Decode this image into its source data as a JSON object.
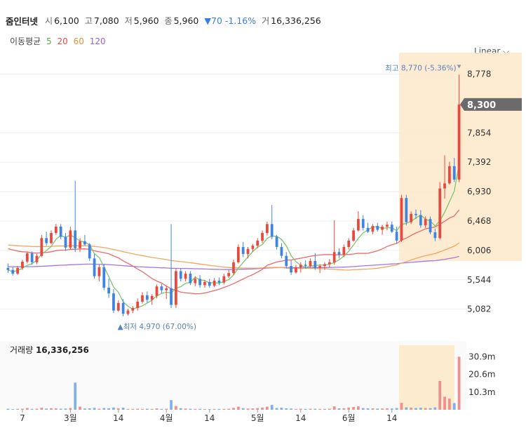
{
  "header": {
    "name": "줌인터넷",
    "open_label": "시",
    "open": "6,100",
    "high_label": "고",
    "high": "7,080",
    "low_label": "저",
    "low": "5,960",
    "close_label": "종",
    "close": "5,960",
    "change": "▼70 -1.16%",
    "volume_label": "거",
    "volume": "16,336,256"
  },
  "ma_legend": {
    "label": "이동평균",
    "p5": "5",
    "p20": "20",
    "p60": "60",
    "p120": "120"
  },
  "scale_button": "Linear ⌵",
  "volume_title": {
    "label": "거래량",
    "value": "16,336,256"
  },
  "colors": {
    "up": "#e8493f",
    "down": "#3e84e0",
    "ma5": "#7cc56b",
    "ma20": "#ec6a6a",
    "ma60": "#f3a55d",
    "ma120": "#a674e0",
    "highlight": "#fde9c9",
    "price_tag": "#6b6b6b"
  },
  "chart_data": {
    "type": "candlestick",
    "price_axis": {
      "ticks": [
        5082,
        5544,
        6006,
        6468,
        6930,
        7392,
        7854,
        8778
      ],
      "range": [
        4670,
        8950
      ]
    },
    "current_price_tag": "8,300",
    "max_annotation": "최고 8,770 (-5.36%)",
    "min_annotation": "▲최저 4,970 (67.00%)",
    "x_tick_labels": [
      "7",
      "3월",
      "14",
      "4월",
      "14",
      "5월",
      "14",
      "6월",
      "14"
    ],
    "x_tick_index": [
      3,
      13,
      23,
      33,
      42,
      52,
      61,
      71,
      80
    ],
    "volume_axis": {
      "ticks": [
        "30.9m",
        "20.6m",
        "10.3m"
      ],
      "tick_values": [
        30.9,
        20.6,
        10.3
      ],
      "max": 36
    },
    "highlight_from_index": 82,
    "candles": [
      [
        5730,
        5800,
        5650,
        5700
      ],
      [
        5700,
        5740,
        5610,
        5640
      ],
      [
        5640,
        5760,
        5620,
        5730
      ],
      [
        5730,
        5860,
        5700,
        5830
      ],
      [
        5830,
        5980,
        5800,
        5960
      ],
      [
        5960,
        5990,
        5780,
        5820
      ],
      [
        5820,
        5950,
        5790,
        5920
      ],
      [
        5920,
        6250,
        5900,
        6200
      ],
      [
        6200,
        6300,
        6080,
        6120
      ],
      [
        6120,
        6320,
        6100,
        6280
      ],
      [
        6280,
        6420,
        6250,
        6380
      ],
      [
        6380,
        6420,
        6180,
        6220
      ],
      [
        6220,
        6280,
        6000,
        6050
      ],
      [
        6050,
        6380,
        6020,
        6320
      ],
      [
        6320,
        7100,
        5980,
        6040
      ],
      [
        6040,
        6200,
        5980,
        6150
      ],
      [
        6150,
        6250,
        6080,
        6100
      ],
      [
        6100,
        6120,
        5840,
        5880
      ],
      [
        5880,
        5950,
        5560,
        5600
      ],
      [
        5600,
        5780,
        5520,
        5740
      ],
      [
        5740,
        5790,
        5380,
        5420
      ],
      [
        5420,
        5560,
        5260,
        5330
      ],
      [
        5330,
        5400,
        5020,
        5060
      ],
      [
        5060,
        5220,
        5040,
        5180
      ],
      [
        5180,
        5240,
        4970,
        5010
      ],
      [
        5010,
        5090,
        4980,
        5060
      ],
      [
        5060,
        5130,
        5020,
        5100
      ],
      [
        5100,
        5250,
        5060,
        5200
      ],
      [
        5200,
        5350,
        5170,
        5300
      ],
      [
        5300,
        5360,
        5180,
        5230
      ],
      [
        5230,
        5320,
        5150,
        5290
      ],
      [
        5290,
        5470,
        5250,
        5440
      ],
      [
        5440,
        5480,
        5330,
        5380
      ],
      [
        5380,
        5450,
        5240,
        5410
      ],
      [
        5410,
        6420,
        5100,
        5150
      ],
      [
        5150,
        5720,
        5100,
        5680
      ],
      [
        5680,
        5720,
        5520,
        5560
      ],
      [
        5560,
        5680,
        5520,
        5640
      ],
      [
        5640,
        5680,
        5460,
        5490
      ],
      [
        5490,
        5600,
        5440,
        5560
      ],
      [
        5560,
        5620,
        5420,
        5460
      ],
      [
        5460,
        5540,
        5420,
        5510
      ],
      [
        5510,
        5560,
        5420,
        5450
      ],
      [
        5450,
        5570,
        5430,
        5530
      ],
      [
        5530,
        5580,
        5460,
        5500
      ],
      [
        5500,
        5640,
        5470,
        5600
      ],
      [
        5600,
        5700,
        5570,
        5650
      ],
      [
        5650,
        5860,
        5620,
        5820
      ],
      [
        5820,
        6100,
        5800,
        6060
      ],
      [
        6060,
        6140,
        5900,
        5950
      ],
      [
        5950,
        6060,
        5880,
        6030
      ],
      [
        6030,
        6110,
        5980,
        6080
      ],
      [
        6080,
        6200,
        6040,
        6160
      ],
      [
        6160,
        6320,
        6120,
        6280
      ],
      [
        6280,
        6460,
        6240,
        6420
      ],
      [
        6420,
        6720,
        6180,
        6220
      ],
      [
        6220,
        6250,
        6020,
        6060
      ],
      [
        6060,
        6120,
        5880,
        5920
      ],
      [
        5920,
        5980,
        5720,
        5760
      ],
      [
        5760,
        5850,
        5620,
        5660
      ],
      [
        5660,
        5780,
        5640,
        5740
      ],
      [
        5740,
        5820,
        5660,
        5780
      ],
      [
        5780,
        5850,
        5720,
        5760
      ],
      [
        5760,
        5880,
        5740,
        5840
      ],
      [
        5840,
        5960,
        5700,
        5730
      ],
      [
        5730,
        5790,
        5650,
        5760
      ],
      [
        5760,
        5820,
        5700,
        5790
      ],
      [
        5790,
        5870,
        5740,
        5820
      ],
      [
        5820,
        6480,
        5780,
        5980
      ],
      [
        5980,
        6040,
        5880,
        5940
      ],
      [
        5940,
        6100,
        5900,
        6060
      ],
      [
        6060,
        6200,
        6020,
        6160
      ],
      [
        6160,
        6360,
        6140,
        6320
      ],
      [
        6320,
        6620,
        6300,
        6500
      ],
      [
        6500,
        6560,
        6320,
        6360
      ],
      [
        6360,
        6440,
        6280,
        6300
      ],
      [
        6300,
        6420,
        6260,
        6390
      ],
      [
        6390,
        6440,
        6300,
        6330
      ],
      [
        6330,
        6410,
        6250,
        6380
      ],
      [
        6380,
        6460,
        6320,
        6410
      ],
      [
        6410,
        6460,
        6280,
        6300
      ],
      [
        6300,
        6380,
        6120,
        6160
      ],
      [
        6160,
        6880,
        6140,
        6830
      ],
      [
        6830,
        6880,
        6400,
        6450
      ],
      [
        6450,
        6620,
        6420,
        6580
      ],
      [
        6580,
        6650,
        6500,
        6560
      ],
      [
        6560,
        6640,
        6360,
        6400
      ],
      [
        6400,
        6540,
        6360,
        6500
      ],
      [
        6500,
        6540,
        6260,
        6290
      ],
      [
        6290,
        6350,
        6150,
        6200
      ],
      [
        6200,
        7080,
        6180,
        6980
      ],
      [
        6980,
        7500,
        6820,
        7060
      ],
      [
        7060,
        7400,
        7040,
        7330
      ],
      [
        7330,
        7460,
        7080,
        7120
      ],
      [
        7120,
        8770,
        7080,
        8300
      ]
    ],
    "volume_m": [
      0.6,
      0.4,
      0.5,
      0.6,
      1.0,
      0.5,
      0.6,
      1.2,
      0.7,
      0.9,
      0.8,
      0.6,
      0.7,
      1.0,
      15.8,
      1.8,
      0.7,
      0.8,
      1.1,
      0.6,
      1.0,
      0.9,
      1.3,
      0.8,
      1.2,
      0.5,
      0.5,
      0.6,
      0.5,
      0.6,
      0.5,
      0.8,
      0.5,
      0.6,
      5.6,
      2.2,
      0.9,
      0.7,
      0.6,
      0.5,
      0.5,
      0.4,
      0.4,
      0.5,
      0.5,
      0.5,
      0.6,
      1.1,
      1.8,
      0.9,
      0.7,
      0.8,
      1.0,
      1.3,
      1.8,
      2.8,
      1.0,
      1.2,
      0.8,
      0.7,
      0.5,
      0.6,
      0.5,
      0.6,
      0.6,
      0.5,
      0.5,
      0.6,
      2.0,
      0.8,
      0.9,
      1.2,
      1.6,
      2.0,
      1.0,
      0.8,
      0.8,
      0.7,
      0.7,
      0.8,
      0.7,
      1.0,
      4.0,
      1.4,
      1.2,
      1.0,
      1.2,
      1.0,
      1.0,
      1.4,
      16.8,
      7.6,
      6.5,
      3.9,
      30.9
    ]
  }
}
